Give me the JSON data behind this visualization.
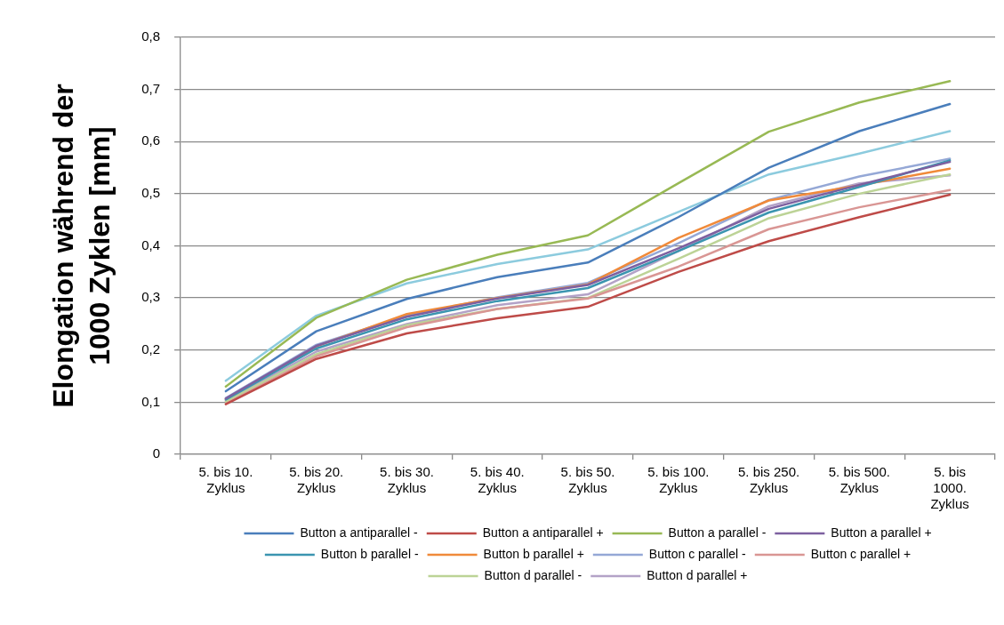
{
  "chart_data": {
    "type": "line",
    "categories": [
      "5. bis 10. Zyklus",
      "5. bis 20. Zyklus",
      "5. bis 30. Zyklus",
      "5. bis 40. Zyklus",
      "5. bis 50. Zyklus",
      "5. bis 100. Zyklus",
      "5. bis 250. Zyklus",
      "5. bis 500. Zyklus",
      "5. bis 1000. Zyklus"
    ],
    "series": [
      {
        "name": "Button a antiparallel -",
        "color": "#4a7ebb",
        "values": [
          0.121,
          0.236,
          0.298,
          0.34,
          0.368,
          0.455,
          0.55,
          0.62,
          0.672
        ]
      },
      {
        "name": "Button a antiparallel +",
        "color": "#be4b48",
        "values": [
          0.096,
          0.183,
          0.232,
          0.261,
          0.283,
          0.35,
          0.409,
          0.455,
          0.498
        ]
      },
      {
        "name": "Button a parallel -",
        "color": "#98b954",
        "values": [
          0.13,
          0.262,
          0.335,
          0.383,
          0.42,
          0.52,
          0.619,
          0.675,
          0.716
        ]
      },
      {
        "name": "Button a parallel +",
        "color": "#7d60a0",
        "values": [
          0.107,
          0.208,
          0.264,
          0.299,
          0.325,
          0.395,
          0.471,
          0.517,
          0.561
        ]
      },
      {
        "name": "Button b parallel -",
        "color": "#3b95b0",
        "values": [
          0.105,
          0.203,
          0.259,
          0.294,
          0.319,
          0.39,
          0.464,
          0.513,
          0.564
        ]
      },
      {
        "name": "Button b parallel +",
        "color": "#f08a3a",
        "values": [
          0.106,
          0.207,
          0.269,
          0.3,
          0.326,
          0.415,
          0.487,
          0.516,
          0.548
        ]
      },
      {
        "name": "Button c parallel -",
        "color": "#95a8d6",
        "values": [
          0.108,
          0.21,
          0.266,
          0.301,
          0.329,
          0.405,
          0.488,
          0.533,
          0.567
        ]
      },
      {
        "name": "Button c parallel +",
        "color": "#d99694",
        "values": [
          0.097,
          0.188,
          0.244,
          0.279,
          0.299,
          0.36,
          0.432,
          0.474,
          0.507
        ]
      },
      {
        "name": "Button d parallel -",
        "color": "#bcd396",
        "values": [
          0.101,
          0.192,
          0.248,
          0.279,
          0.3,
          0.375,
          0.453,
          0.5,
          0.537
        ]
      },
      {
        "name": "Button d parallel +",
        "color": "#b3a2c7",
        "values": [
          0.103,
          0.197,
          0.25,
          0.286,
          0.307,
          0.39,
          0.476,
          0.52,
          0.535
        ]
      },
      {
        "color": "#8ccbde",
        "values": [
          0.141,
          0.266,
          0.328,
          0.365,
          0.393,
          0.465,
          0.537,
          0.577,
          0.62
        ]
      }
    ],
    "ylabel": "Elongation während der 1000 Zyklen [mm]",
    "ylim": [
      0,
      0.8
    ],
    "yticks": [
      0,
      {
        "value": 0.1,
        "label": "0,1"
      },
      {
        "value": 0.2,
        "label": "0,2"
      },
      {
        "value": 0.3,
        "label": "0,3"
      },
      {
        "value": 0.4,
        "label": "0,4"
      },
      {
        "value": 0.5,
        "label": "0,5"
      },
      {
        "value": 0.6,
        "label": "0,6"
      },
      {
        "value": 0.7,
        "label": "0,7"
      },
      {
        "value": 0.8,
        "label": "0,8"
      }
    ],
    "grid": "y",
    "legend": "bottom",
    "marker": "none"
  }
}
